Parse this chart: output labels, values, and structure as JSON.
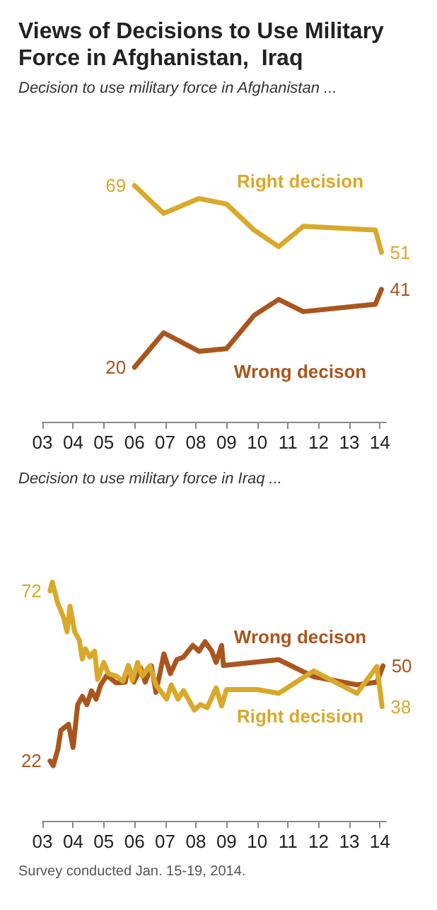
{
  "chart_data": [
    {
      "type": "line",
      "title": "Views of Decisions to Use Military Force in Afghanistan,  Iraq",
      "subtitle": "Decision to use military force in Afghanistan ...",
      "xlim": [
        2003,
        2014.2
      ],
      "xticks": [
        {
          "value": 2003,
          "label": "03"
        },
        {
          "value": 2004,
          "label": "04"
        },
        {
          "value": 2005,
          "label": "05"
        },
        {
          "value": 2006,
          "label": "06"
        },
        {
          "value": 2007,
          "label": "07"
        },
        {
          "value": 2008,
          "label": "08"
        },
        {
          "value": 2009,
          "label": "09"
        },
        {
          "value": 2010,
          "label": "10"
        },
        {
          "value": 2011,
          "label": "11"
        },
        {
          "value": 2012,
          "label": "12"
        },
        {
          "value": 2013,
          "label": "13"
        },
        {
          "value": 2014,
          "label": "14"
        }
      ],
      "tick_labels": "x",
      "marker": "none",
      "series": [
        {
          "name": "Right decision",
          "color": "#d9a92c",
          "x": [
            2006.0,
            2006.95,
            2008.1,
            2009.0,
            2009.9,
            2010.7,
            2011.5,
            2013.85,
            2014.05
          ],
          "values": [
            69,
            61.5,
            65.5,
            64,
            57,
            52.5,
            58,
            57,
            51
          ],
          "value_labels": [
            "69",
            null,
            null,
            null,
            null,
            null,
            null,
            null,
            "51"
          ]
        },
        {
          "name": "Wrong decison",
          "color": "#a9561e",
          "x": [
            2006.0,
            2006.95,
            2008.1,
            2009.0,
            2009.9,
            2010.7,
            2011.5,
            2013.85,
            2014.05
          ],
          "values": [
            20,
            29.3,
            24.3,
            25,
            34,
            38.3,
            35,
            37,
            41
          ],
          "value_labels": [
            "20",
            null,
            null,
            null,
            null,
            null,
            null,
            null,
            "41"
          ]
        }
      ]
    },
    {
      "type": "line",
      "subtitle": "Decision to use military force in Iraq ...",
      "xlim": [
        2003,
        2014.2
      ],
      "xticks": [
        {
          "value": 2003,
          "label": "03"
        },
        {
          "value": 2004,
          "label": "04"
        },
        {
          "value": 2005,
          "label": "05"
        },
        {
          "value": 2006,
          "label": "06"
        },
        {
          "value": 2007,
          "label": "07"
        },
        {
          "value": 2008,
          "label": "08"
        },
        {
          "value": 2009,
          "label": "09"
        },
        {
          "value": 2010,
          "label": "10"
        },
        {
          "value": 2011,
          "label": "11"
        },
        {
          "value": 2012,
          "label": "12"
        },
        {
          "value": 2013,
          "label": "13"
        },
        {
          "value": 2014,
          "label": "14"
        }
      ],
      "tick_labels": "x",
      "marker": "none",
      "annotations": [
        "Survey conducted Jan. 15-19, 2014."
      ],
      "series": [
        {
          "name": "Wrong decison",
          "color": "#a9561e",
          "x": [
            2003.25,
            2003.35,
            2003.5,
            2003.6,
            2003.85,
            2004.0,
            2004.15,
            2004.3,
            2004.45,
            2004.6,
            2004.75,
            2004.9,
            2005.1,
            2005.4,
            2005.7,
            2005.8,
            2005.98,
            2006.2,
            2006.35,
            2006.55,
            2006.7,
            2006.96,
            2007.17,
            2007.38,
            2007.6,
            2007.9,
            2008.1,
            2008.3,
            2008.52,
            2008.66,
            2008.84,
            2008.9,
            2010.7,
            2011.84,
            2013.25,
            2013.9,
            2014.1
          ],
          "values": [
            22,
            20.6,
            25.3,
            31,
            32.8,
            26,
            38.6,
            41,
            38.6,
            42.6,
            40.2,
            44.4,
            47.2,
            45,
            45.2,
            50,
            45.2,
            49.4,
            45.2,
            50,
            42.2,
            53.5,
            47.7,
            51.8,
            52.6,
            56,
            54.3,
            57.1,
            54.3,
            51,
            56,
            50.1,
            51.8,
            46.8,
            44.4,
            45.2,
            50
          ],
          "value_labels": [
            "22",
            null,
            null,
            null,
            null,
            null,
            null,
            null,
            null,
            null,
            null,
            null,
            null,
            null,
            null,
            null,
            null,
            null,
            null,
            null,
            null,
            null,
            null,
            null,
            null,
            null,
            null,
            null,
            null,
            null,
            null,
            null,
            null,
            null,
            null,
            null,
            "50"
          ]
        },
        {
          "name": "Right decision",
          "color": "#d9a92c",
          "x": [
            2003.25,
            2003.32,
            2003.5,
            2003.7,
            2003.8,
            2003.9,
            2004.05,
            2004.2,
            2004.3,
            2004.4,
            2004.55,
            2004.7,
            2004.8,
            2005.0,
            2005.15,
            2005.4,
            2005.62,
            2005.8,
            2005.93,
            2006.1,
            2006.25,
            2006.5,
            2006.7,
            2006.9,
            2007.05,
            2007.2,
            2007.42,
            2007.6,
            2007.95,
            2008.15,
            2008.37,
            2008.66,
            2008.84,
            2009.0,
            2010.0,
            2010.7,
            2011.84,
            2013.25,
            2013.9,
            2014.07
          ],
          "values": [
            72,
            74.6,
            68.4,
            64,
            60,
            67.5,
            60,
            57.6,
            52,
            55,
            52.6,
            54.3,
            46,
            51,
            47.7,
            47,
            45.5,
            50,
            45.6,
            51,
            47,
            50,
            44.4,
            42,
            40.2,
            44.4,
            40.2,
            42.7,
            37,
            38.6,
            37.7,
            43.5,
            38.2,
            43,
            43,
            41.9,
            48.5,
            41.9,
            49.8,
            38
          ],
          "value_labels": [
            "72",
            null,
            null,
            null,
            null,
            null,
            null,
            null,
            null,
            null,
            null,
            null,
            null,
            null,
            null,
            null,
            null,
            null,
            null,
            null,
            null,
            null,
            null,
            null,
            null,
            null,
            null,
            null,
            null,
            null,
            null,
            null,
            null,
            null,
            null,
            null,
            null,
            null,
            null,
            "38"
          ]
        }
      ]
    }
  ]
}
